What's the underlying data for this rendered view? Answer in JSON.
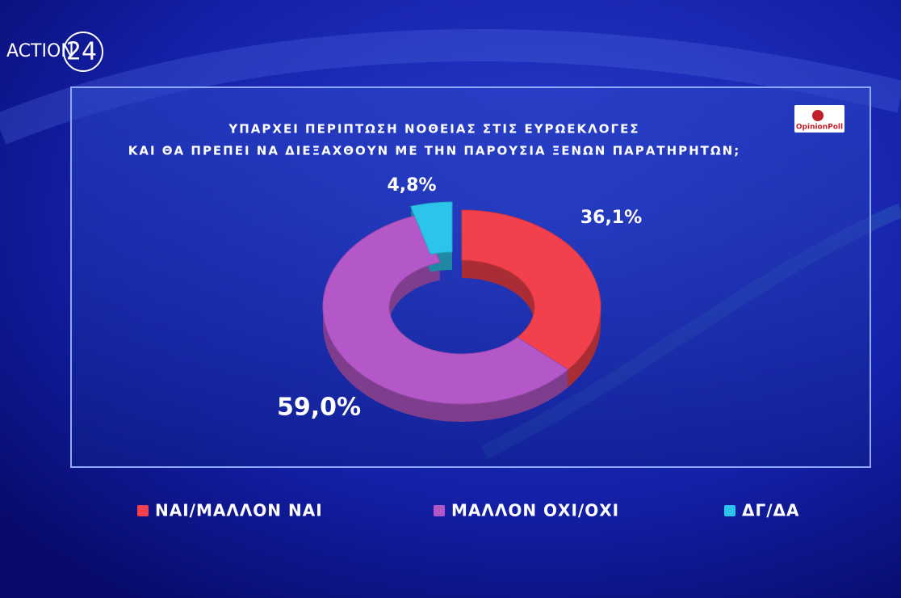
{
  "brand": {
    "name": "ACTION",
    "number": "24"
  },
  "source": "OpinionPoll",
  "chart_data": {
    "type": "donut",
    "title": [
      "ΥΠΑΡΧΕΙ ΠΕΡΙΠΤΩΣΗ ΝΟΘΕΙΑΣ ΣΤΙΣ ΕΥΡΩΕΚΛΟΓΕΣ",
      "ΚΑΙ ΘΑ ΠΡΕΠΕΙ ΝΑ ΔΙΕΞΑΧΘΟΥΝ ΜΕ ΤΗΝ ΠΑΡΟΥΣΙΑ ΞΕΝΩΝ ΠΑΡΑΤΗΡΗΤΩΝ;"
    ],
    "categories": [
      "ΝΑΙ/ΜΑΛΛΟΝ ΝΑΙ",
      "ΜΑΛΛΟΝ ΟΧΙ/ΟΧΙ",
      "ΔΓ/ΔΑ"
    ],
    "values": [
      36.1,
      59.0,
      4.8
    ],
    "value_labels": [
      "36,1%",
      "59,0%",
      "4,8%"
    ],
    "colors": [
      "#f2404c",
      "#b457c9",
      "#2cc4ea"
    ],
    "legend": "bottom"
  }
}
